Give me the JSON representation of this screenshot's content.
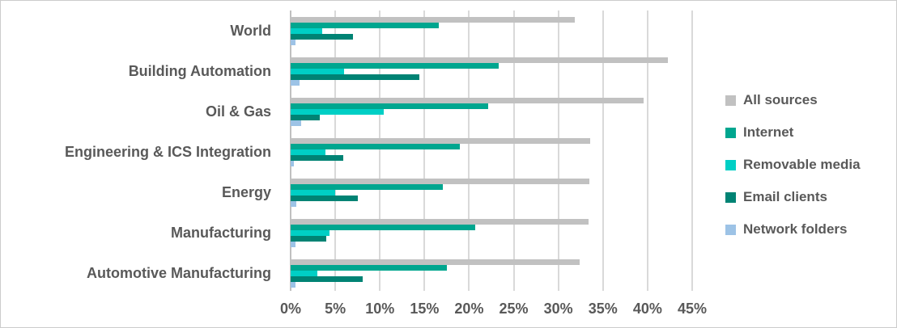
{
  "chart_data": {
    "type": "bar",
    "orientation": "horizontal",
    "title": "",
    "categories": [
      "World",
      "Building Automation",
      "Oil & Gas",
      "Engineering & ICS Integration",
      "Energy",
      "Manufacturing",
      "Automotive Manufacturing"
    ],
    "series": [
      {
        "name": "All sources",
        "color": "#C1C1C1",
        "values": [
          31.8,
          42.3,
          39.6,
          33.6,
          33.5,
          33.4,
          32.4
        ]
      },
      {
        "name": "Internet",
        "color": "#00A68F",
        "values": [
          16.6,
          23.3,
          22.1,
          19.0,
          17.1,
          20.7,
          17.5
        ]
      },
      {
        "name": "Removable media",
        "color": "#00CFC5",
        "values": [
          3.5,
          6.0,
          10.4,
          3.9,
          5.0,
          4.4,
          3.0
        ]
      },
      {
        "name": "Email clients",
        "color": "#008374",
        "values": [
          7.0,
          14.4,
          3.3,
          5.9,
          7.5,
          4.0,
          8.1
        ]
      },
      {
        "name": "Network folders",
        "color": "#9DC3E6",
        "values": [
          0.5,
          1.0,
          1.2,
          0.4,
          0.6,
          0.5,
          0.5
        ]
      }
    ],
    "x_axis": {
      "unit": "%",
      "min": 0,
      "max": 45,
      "tick_values": [
        0,
        5,
        10,
        15,
        20,
        25,
        30,
        35,
        40,
        45
      ],
      "tick_labels": [
        "0%",
        "5%",
        "10%",
        "15%",
        "20%",
        "25%",
        "30%",
        "35%",
        "40%",
        "45%"
      ]
    },
    "legend": {
      "position": "right",
      "entries": [
        "All sources",
        "Internet",
        "Removable media",
        "Email clients",
        "Network folders"
      ]
    },
    "grid": "vertical-only"
  },
  "colors": {
    "background": "#FFFFFF",
    "border": "#CCCCCC",
    "gridline": "#D9D9D9",
    "axis_line": "#C0C0C0",
    "text": "#595959"
  }
}
